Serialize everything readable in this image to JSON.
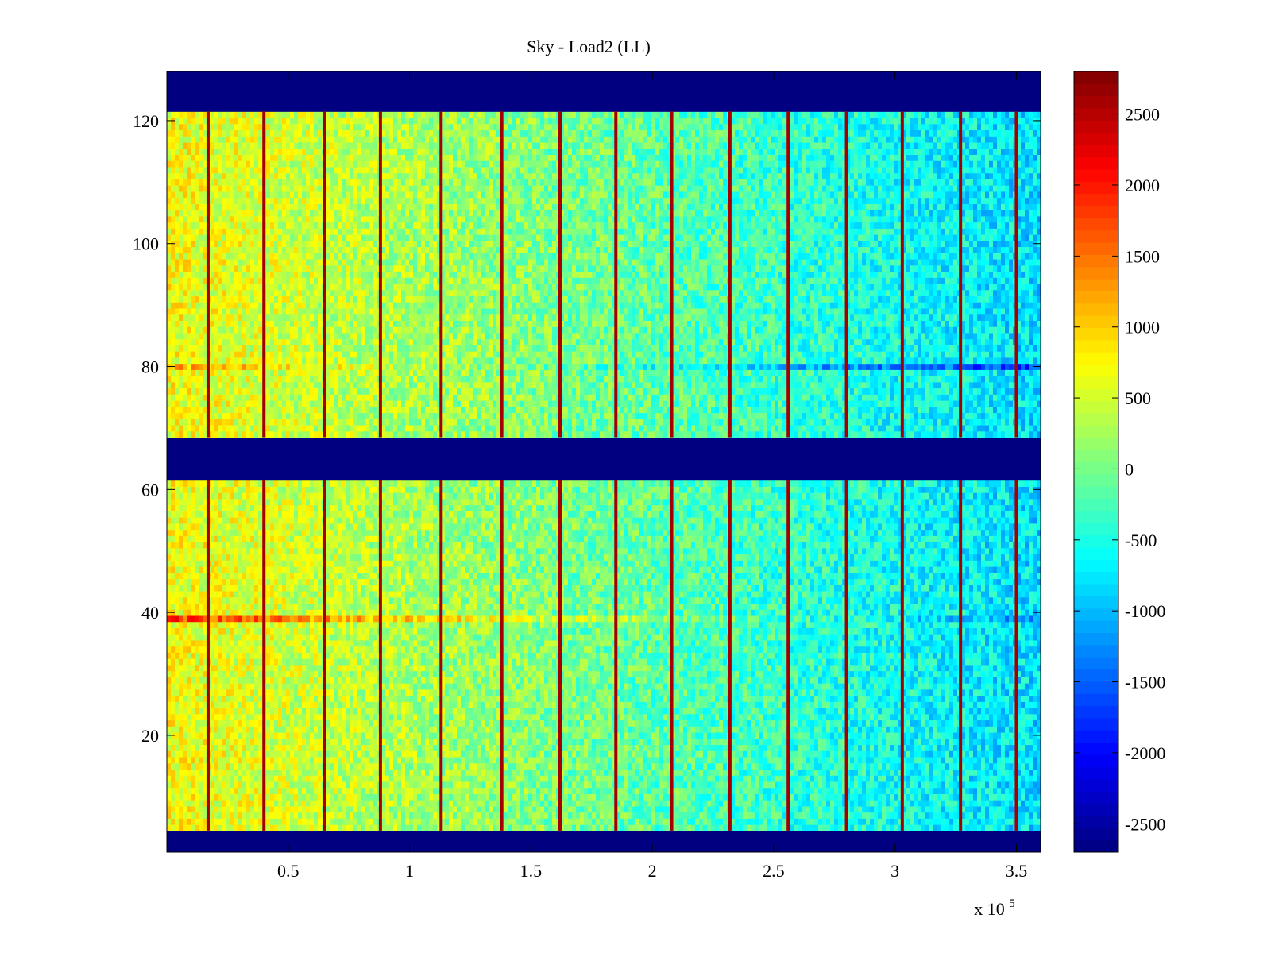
{
  "chart_data": {
    "type": "heatmap",
    "title": "Sky - Load2 (LL)",
    "xlabel": "",
    "ylabel": "",
    "xlim": [
      0,
      360000
    ],
    "ylim": [
      1,
      128
    ],
    "x_exponent_label": "x 10",
    "x_exponent_power": "5",
    "x_ticks": [
      {
        "value": 50000,
        "label": "0.5"
      },
      {
        "value": 100000,
        "label": "1"
      },
      {
        "value": 150000,
        "label": "1.5"
      },
      {
        "value": 200000,
        "label": "2"
      },
      {
        "value": 250000,
        "label": "2.5"
      },
      {
        "value": 300000,
        "label": "3"
      },
      {
        "value": 350000,
        "label": "3.5"
      }
    ],
    "y_ticks": [
      {
        "value": 20,
        "label": "20"
      },
      {
        "value": 40,
        "label": "40"
      },
      {
        "value": 60,
        "label": "60"
      },
      {
        "value": 80,
        "label": "80"
      },
      {
        "value": 100,
        "label": "100"
      },
      {
        "value": 120,
        "label": "120"
      }
    ],
    "colorbar": {
      "colormap": "jet",
      "range": [
        -2700,
        2800
      ],
      "ticks": [
        {
          "value": 2500,
          "label": "2500"
        },
        {
          "value": 2000,
          "label": "2000"
        },
        {
          "value": 1500,
          "label": "1500"
        },
        {
          "value": 1000,
          "label": "1000"
        },
        {
          "value": 500,
          "label": "500"
        },
        {
          "value": 0,
          "label": "0"
        },
        {
          "value": -500,
          "label": "-500"
        },
        {
          "value": -1000,
          "label": "-1000"
        },
        {
          "value": -1500,
          "label": "-1500"
        },
        {
          "value": -2000,
          "label": "-2000"
        },
        {
          "value": -2500,
          "label": "-2500"
        }
      ]
    },
    "blank_row_bands": [
      [
        1,
        4
      ],
      [
        62,
        68
      ],
      [
        122,
        128
      ]
    ],
    "stripe_columns_x": [
      17000,
      40000,
      65000,
      88000,
      113000,
      138000,
      162000,
      185000,
      208000,
      232000,
      256000,
      280000,
      303000,
      327000,
      350000
    ],
    "background_trend": {
      "left_value": 700,
      "right_value": -800
    },
    "notable_rows": [
      {
        "row": 80,
        "left_value": 1200,
        "right_value": -1800
      },
      {
        "row": 39,
        "left_value": 1800,
        "right_value": -1200
      }
    ]
  },
  "colors": {
    "background": "#ffffff",
    "axes": "#000000",
    "blank_band": "#000080"
  }
}
